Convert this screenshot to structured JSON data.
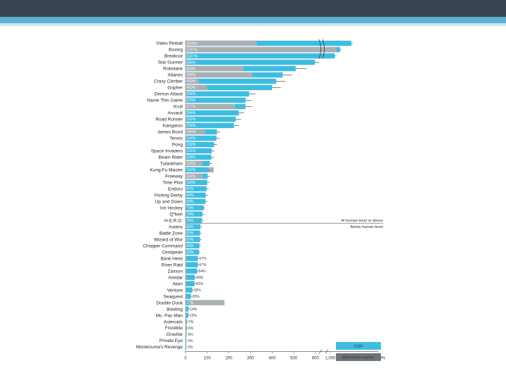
{
  "colors": {
    "dqn": "#3ebde3",
    "linear": "#a9b0b4",
    "topbar": "#3b4453",
    "accent": "#5fb2d4"
  },
  "chart_data": {
    "type": "bar",
    "orientation": "horizontal",
    "title": "",
    "xlabel": "",
    "ylabel": "",
    "xlim": [
      0,
      4500
    ],
    "x_axis_break": [
      600,
      1000
    ],
    "xticks": [
      "0",
      "100",
      "200",
      "300",
      "400",
      "500",
      "600",
      "1,000",
      "4,500%"
    ],
    "threshold_label_above": "At human-level or above",
    "threshold_label_below": "Below human-level",
    "legend": [
      "DQN",
      "Best linear learner"
    ],
    "legend_position": "bottom-right",
    "games": [
      {
        "name": "Video Pinball",
        "label": "2539%",
        "dqn": 2539,
        "linear": 330
      },
      {
        "name": "Boxing",
        "label": "1707%",
        "dqn": 1707,
        "linear": 1450
      },
      {
        "name": "Breakout",
        "label": "1327%",
        "dqn": 1327,
        "linear": 8
      },
      {
        "name": "Star Gunner",
        "label": "598%",
        "dqn": 598,
        "linear": 6
      },
      {
        "name": "Robotank",
        "label": "509%",
        "dqn": 509,
        "linear": 268
      },
      {
        "name": "Atlantis",
        "label": "449%",
        "dqn": 449,
        "linear": 308
      },
      {
        "name": "Crazy Climber",
        "label": "419%",
        "dqn": 419,
        "linear": 60
      },
      {
        "name": "Gopher",
        "label": "400%",
        "dqn": 400,
        "linear": 100
      },
      {
        "name": "Demon Attack",
        "label": "294%",
        "dqn": 294,
        "linear": 6
      },
      {
        "name": "Name This Game",
        "label": "278%",
        "dqn": 278,
        "linear": 8
      },
      {
        "name": "Krull",
        "label": "277%",
        "dqn": 277,
        "linear": 230
      },
      {
        "name": "Assault",
        "label": "246%",
        "dqn": 246,
        "linear": 6
      },
      {
        "name": "Road Runner",
        "label": "232%",
        "dqn": 232,
        "linear": 4
      },
      {
        "name": "Kangaroo",
        "label": "224%",
        "dqn": 224,
        "linear": 4
      },
      {
        "name": "James Bond",
        "label": "145%",
        "dqn": 145,
        "linear": 90
      },
      {
        "name": "Tennis",
        "label": "143%",
        "dqn": 143,
        "linear": 4
      },
      {
        "name": "Pong",
        "label": "132%",
        "dqn": 132,
        "linear": 4
      },
      {
        "name": "Space Invaders",
        "label": "121%",
        "dqn": 121,
        "linear": 4
      },
      {
        "name": "Beam Rider",
        "label": "119%",
        "dqn": 119,
        "linear": 4
      },
      {
        "name": "Tutankham",
        "label": "112%",
        "dqn": 112,
        "linear": 78
      },
      {
        "name": "Kung-Fu Master",
        "label": "102%",
        "dqn": 102,
        "linear": 130
      },
      {
        "name": "Freeway",
        "label": "102%",
        "dqn": 102,
        "linear": 80
      },
      {
        "name": "Time Pilot",
        "label": "100%",
        "dqn": 100,
        "linear": 4
      },
      {
        "name": "Enduro",
        "label": "97%",
        "dqn": 97,
        "linear": 4
      },
      {
        "name": "Fishing Derby",
        "label": "93%",
        "dqn": 93,
        "linear": 4
      },
      {
        "name": "Up and Down",
        "label": "92%",
        "dqn": 92,
        "linear": 4
      },
      {
        "name": "Ice Hockey",
        "label": "79%",
        "dqn": 79,
        "linear": 86
      },
      {
        "name": "Q*bert",
        "label": "78%",
        "dqn": 78,
        "linear": 4
      },
      {
        "name": "H.E.R.O.",
        "label": "76%",
        "dqn": 76,
        "linear": 4
      },
      {
        "name": "Asterix",
        "label": "69%",
        "dqn": 69,
        "linear": 4
      },
      {
        "name": "Battle Zone",
        "label": "67%",
        "dqn": 67,
        "linear": 4
      },
      {
        "name": "Wizard of Wor",
        "label": "67%",
        "dqn": 67,
        "linear": 4
      },
      {
        "name": "Chopper Command",
        "label": "64%",
        "dqn": 64,
        "linear": 4
      },
      {
        "name": "Centipede",
        "label": "62%",
        "dqn": 62,
        "linear": 4
      },
      {
        "name": "Bank Heist",
        "label": "57%",
        "dqn": 57,
        "linear": 4
      },
      {
        "name": "River Raid",
        "label": "57%",
        "dqn": 57,
        "linear": 4
      },
      {
        "name": "Zaxxon",
        "label": "54%",
        "dqn": 54,
        "linear": 4
      },
      {
        "name": "Amidar",
        "label": "43%",
        "dqn": 43,
        "linear": 4
      },
      {
        "name": "Alien",
        "label": "42%",
        "dqn": 42,
        "linear": 4
      },
      {
        "name": "Venture",
        "label": "32%",
        "dqn": 32,
        "linear": 4
      },
      {
        "name": "Seaquest",
        "label": "25%",
        "dqn": 25,
        "linear": 4
      },
      {
        "name": "Double Dunk",
        "label": "17%",
        "dqn": 17,
        "linear": 180
      },
      {
        "name": "Bowling",
        "label": "14%",
        "dqn": 14,
        "linear": 4
      },
      {
        "name": "Ms. Pac-Man",
        "label": "13%",
        "dqn": 13,
        "linear": 4
      },
      {
        "name": "Asteroids",
        "label": "7%",
        "dqn": 7,
        "linear": 4
      },
      {
        "name": "Frostbite",
        "label": "6%",
        "dqn": 6,
        "linear": 4
      },
      {
        "name": "Gravitar",
        "label": "5%",
        "dqn": 5,
        "linear": 4
      },
      {
        "name": "Private Eye",
        "label": "2%",
        "dqn": 2,
        "linear": 4
      },
      {
        "name": "Montezuma's Revenge",
        "label": "0%",
        "dqn": 0,
        "linear": 0
      }
    ]
  }
}
